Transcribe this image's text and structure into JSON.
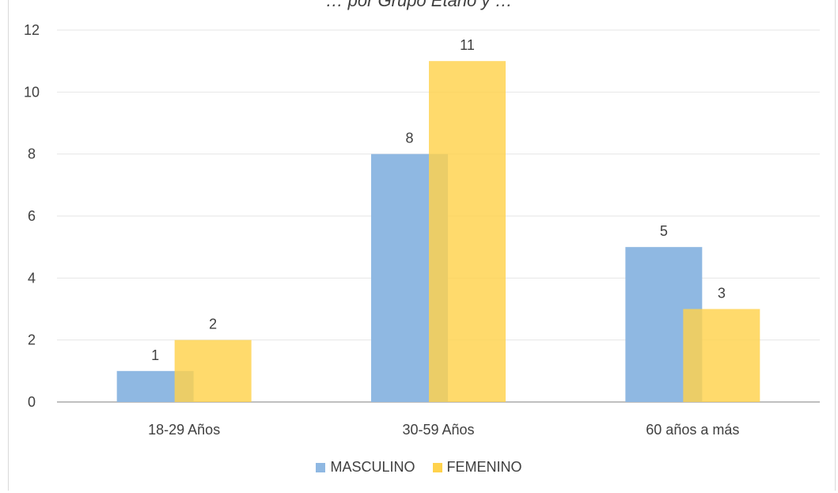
{
  "chart_data": {
    "type": "bar",
    "title": "… por Grupo Etario y …",
    "categories": [
      "18-29 Años",
      "30-59 Años",
      "60 años a más"
    ],
    "series": [
      {
        "name": "MASCULINO",
        "values": [
          1,
          8,
          5
        ],
        "color": "#8fb8e2"
      },
      {
        "name": "FEMENINO",
        "values": [
          2,
          11,
          3
        ],
        "color": "#ffd24c"
      }
    ],
    "ylim": [
      0,
      12
    ],
    "yticks": [
      0,
      2,
      4,
      6,
      8,
      10,
      12
    ],
    "grid": true,
    "legend_position": "bottom"
  }
}
